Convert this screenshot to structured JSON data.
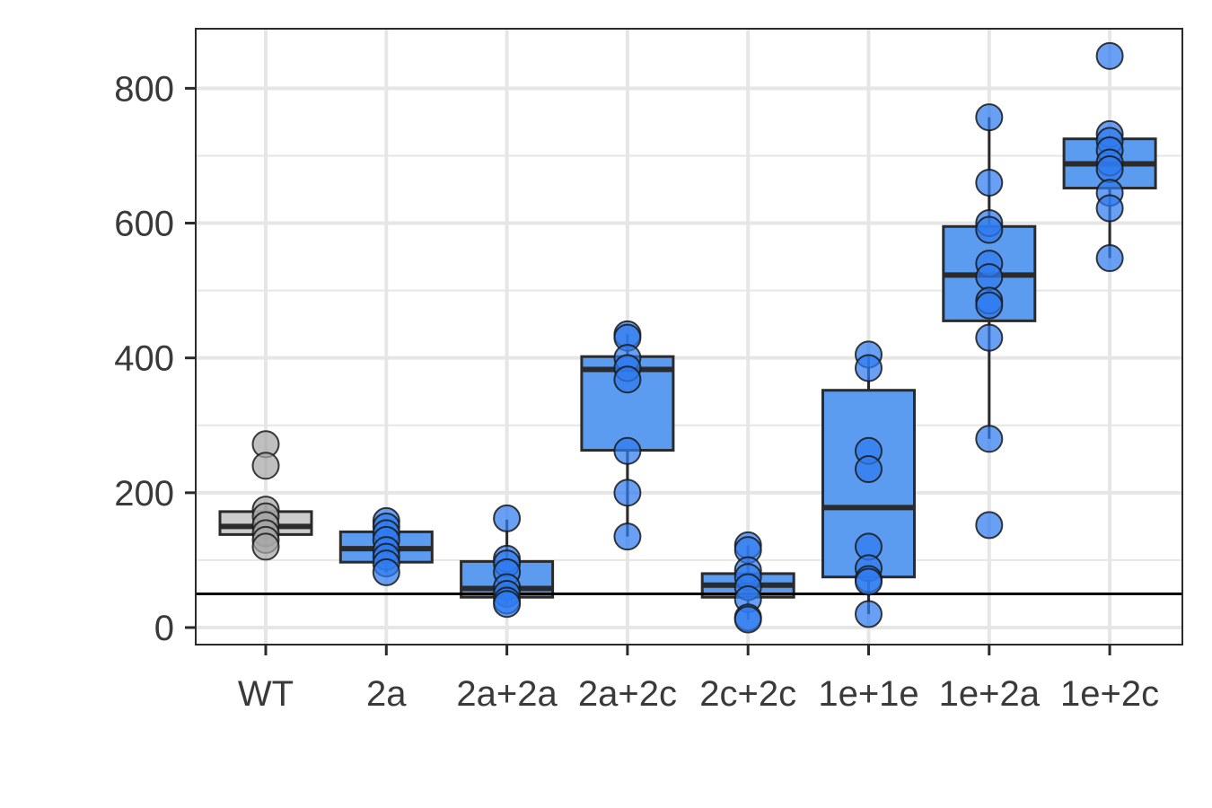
{
  "chart_data": {
    "type": "box",
    "categories": [
      "WT",
      "2a",
      "2a+2a",
      "2a+2c",
      "2c+2c",
      "1e+1e",
      "1e+2a",
      "1e+2c"
    ],
    "ylim": [
      -25,
      890
    ],
    "yticks": [
      0,
      200,
      400,
      600,
      800
    ],
    "grid": true,
    "reference_line_y": 50,
    "colors": {
      "wt_box": "#cccccc",
      "wt_point": "#a6a6a6",
      "mutant_box": "#5b9bf0",
      "mutant_point": "#2f7bf0",
      "outline": "#2b2b2b",
      "grid": "#e6e6e6"
    },
    "boxes": [
      {
        "category": "WT",
        "q1": 138,
        "median": 150,
        "q3": 172,
        "whisker_low": 120,
        "whisker_high": 182
      },
      {
        "category": "2a",
        "q1": 97,
        "median": 117,
        "q3": 142,
        "whisker_low": 82,
        "whisker_high": 160
      },
      {
        "category": "2a+2a",
        "q1": 45,
        "median": 58,
        "q3": 98,
        "whisker_low": 35,
        "whisker_high": 160
      },
      {
        "category": "2a+2c",
        "q1": 263,
        "median": 383,
        "q3": 402,
        "whisker_low": 135,
        "whisker_high": 435
      },
      {
        "category": "2c+2c",
        "q1": 45,
        "median": 63,
        "q3": 80,
        "whisker_low": 12,
        "whisker_high": 122
      },
      {
        "category": "1e+1e",
        "q1": 75,
        "median": 178,
        "q3": 352,
        "whisker_low": 20,
        "whisker_high": 405
      },
      {
        "category": "1e+2a",
        "q1": 455,
        "median": 523,
        "q3": 595,
        "whisker_low": 280,
        "whisker_high": 757
      },
      {
        "category": "1e+2c",
        "q1": 652,
        "median": 688,
        "q3": 725,
        "whisker_low": 548,
        "whisker_high": 730
      }
    ],
    "points": [
      {
        "category": "WT",
        "values": [
          272,
          240,
          175,
          165,
          152,
          140,
          130,
          120
        ]
      },
      {
        "category": "2a",
        "values": [
          158,
          150,
          140,
          130,
          115,
          105,
          95,
          82
        ]
      },
      {
        "category": "2a+2a",
        "values": [
          162,
          102,
          95,
          82,
          60,
          50,
          40,
          35
        ]
      },
      {
        "category": "2a+2c",
        "values": [
          435,
          430,
          400,
          385,
          368,
          262,
          200,
          135
        ]
      },
      {
        "category": "2c+2c",
        "values": [
          122,
          115,
          85,
          75,
          60,
          42,
          15,
          12
        ]
      },
      {
        "category": "1e+1e",
        "values": [
          405,
          385,
          262,
          235,
          120,
          88,
          72,
          68,
          20
        ]
      },
      {
        "category": "1e+2a",
        "values": [
          757,
          660,
          600,
          590,
          540,
          520,
          485,
          478,
          430,
          280,
          152
        ]
      },
      {
        "category": "1e+2c",
        "values": [
          848,
          732,
          722,
          708,
          690,
          680,
          645,
          622,
          548
        ]
      }
    ]
  }
}
